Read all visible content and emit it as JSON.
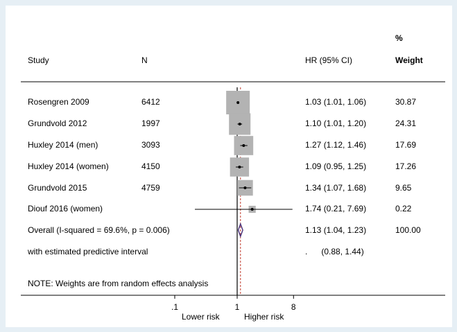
{
  "header": {
    "study": "Study",
    "n": "N",
    "hr": "HR (95% CI)",
    "weight_pct": "%",
    "weight": "Weight"
  },
  "rows": [
    {
      "study": "Rosengren 2009",
      "n": "6412",
      "hr_text": "1.03 (1.01, 1.06)",
      "weight": "30.87"
    },
    {
      "study": "Grundvold 2012",
      "n": "1997",
      "hr_text": "1.10 (1.01, 1.20)",
      "weight": "24.31"
    },
    {
      "study": "Huxley 2014 (men)",
      "n": "3093",
      "hr_text": "1.27 (1.12, 1.46)",
      "weight": "17.69"
    },
    {
      "study": "Huxley 2014 (women)",
      "n": "4150",
      "hr_text": "1.09 (0.95, 1.25)",
      "weight": "17.26"
    },
    {
      "study": "Grundvold 2015",
      "n": "4759",
      "hr_text": "1.34 (1.07, 1.68)",
      "weight": "9.65"
    },
    {
      "study": "Diouf 2016 (women)",
      "n": "",
      "hr_text": "1.74 (0.21, 7.69)",
      "weight": "0.22"
    }
  ],
  "overall": {
    "label": "Overall  (I-squared = 69.6%, p = 0.006)",
    "hr_text": "1.13 (1.04, 1.23)",
    "weight": "100.00"
  },
  "predictive": {
    "label": "with estimated predictive interval",
    "hr_text": ".      (0.88, 1.44)"
  },
  "note": "NOTE: Weights are from random effects analysis",
  "x_axis": {
    "ticks": [
      ".1",
      "1",
      "8"
    ],
    "left_caption": "Lower risk",
    "right_caption": "Higher risk"
  },
  "chart_data": {
    "type": "forest",
    "scale": "log",
    "null_value": 1,
    "pooled_estimate_line": 1.13,
    "x_ticks": [
      0.1,
      1,
      8
    ],
    "studies": [
      {
        "name": "Rosengren 2009",
        "n": 6412,
        "hr": 1.03,
        "lo": 1.01,
        "hi": 1.06,
        "weight": 30.87
      },
      {
        "name": "Grundvold 2012",
        "n": 1997,
        "hr": 1.1,
        "lo": 1.01,
        "hi": 1.2,
        "weight": 24.31
      },
      {
        "name": "Huxley 2014 (men)",
        "n": 3093,
        "hr": 1.27,
        "lo": 1.12,
        "hi": 1.46,
        "weight": 17.69
      },
      {
        "name": "Huxley 2014 (women)",
        "n": 4150,
        "hr": 1.09,
        "lo": 0.95,
        "hi": 1.25,
        "weight": 17.26
      },
      {
        "name": "Grundvold 2015",
        "n": 4759,
        "hr": 1.34,
        "lo": 1.07,
        "hi": 1.68,
        "weight": 9.65
      },
      {
        "name": "Diouf 2016 (women)",
        "n": null,
        "hr": 1.74,
        "lo": 0.21,
        "hi": 7.69,
        "weight": 0.22
      }
    ],
    "overall": {
      "hr": 1.13,
      "lo": 1.04,
      "hi": 1.23,
      "weight": 100.0
    },
    "predictive_interval": {
      "lo": 0.88,
      "hi": 1.44
    },
    "colors": {
      "box": "#b3b3b3",
      "diamond": "#46307a",
      "pooled_line": "#c0392b",
      "background": "#e6eff5"
    }
  }
}
